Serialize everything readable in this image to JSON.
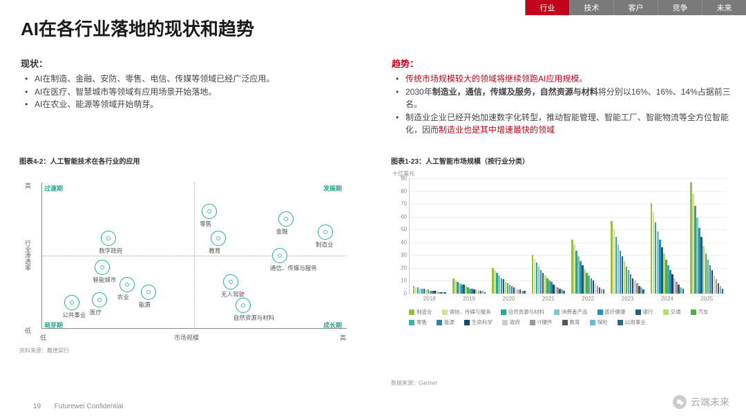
{
  "nav": {
    "tabs": [
      {
        "label": "行业",
        "active": true
      },
      {
        "label": "技术",
        "active": false
      },
      {
        "label": "客户",
        "active": false
      },
      {
        "label": "竞争",
        "active": false
      },
      {
        "label": "未来",
        "active": false
      }
    ]
  },
  "title": "AI在各行业落地的现状和趋势",
  "left": {
    "heading": "现状：",
    "bullets": [
      {
        "text": "AI在制造、金融、安防、零售、电信、传媒等领域已经广泛应用。"
      },
      {
        "text": "AI在医疗、智慧城市等领域有应用场景开始落地。"
      },
      {
        "text": "AI在农业、能源等领域开始萌芽。"
      }
    ]
  },
  "right": {
    "heading": "趋势",
    "bullets": [
      {
        "html": "<span class='hl'>传统市场规模较大的领域将继续领跑AI应用规模</span>。"
      },
      {
        "html": "2030年<span class='bold'>制造业，通信，传媒及服务，自然资源与材料</span>将分别以16%、16%、14%占据前三名。"
      },
      {
        "html": "制造业企业已经开始加速数字化转型，推动智能管理、智能工厂、智能物流等全方位智能化，因而<span class='hl'>制造业也是其中增速最快的领域</span>"
      }
    ]
  },
  "scatter": {
    "title": "图表4-2：人工智能技术在各行业的应用",
    "corner_labels": {
      "tl": "过渡期",
      "tr": "发展期",
      "bl": "萌芽期",
      "br": "成长期"
    },
    "y_axis": {
      "label": "行业渗透率",
      "low": "低",
      "high": "高"
    },
    "x_axis": {
      "label": "市场规模",
      "low": "低",
      "high": "高"
    },
    "accent": "#2aa890",
    "nodes": [
      {
        "label": "数字政府",
        "x": 0.22,
        "y": 0.62
      },
      {
        "label": "智能城市",
        "x": 0.2,
        "y": 0.42
      },
      {
        "label": "公共事业",
        "x": 0.1,
        "y": 0.18
      },
      {
        "label": "医疗",
        "x": 0.19,
        "y": 0.2
      },
      {
        "label": "农业",
        "x": 0.28,
        "y": 0.3
      },
      {
        "label": "能源",
        "x": 0.35,
        "y": 0.25
      },
      {
        "label": "零售",
        "x": 0.55,
        "y": 0.8
      },
      {
        "label": "教育",
        "x": 0.58,
        "y": 0.62
      },
      {
        "label": "无人驾驶",
        "x": 0.62,
        "y": 0.32
      },
      {
        "label": "自然资源与材料",
        "x": 0.66,
        "y": 0.16
      },
      {
        "label": "金融",
        "x": 0.8,
        "y": 0.75
      },
      {
        "label": "通信、传媒与服务",
        "x": 0.78,
        "y": 0.5
      },
      {
        "label": "制造业",
        "x": 0.93,
        "y": 0.66
      }
    ],
    "source": "资料来源：戴德梁行"
  },
  "barchart": {
    "title": "图表1-23：人工智能市场规模（按行业分类）",
    "y_unit": "十亿美元",
    "ylim": [
      0,
      90
    ],
    "ytick_step": 10,
    "years": [
      "2018",
      "2019",
      "2020",
      "2021",
      "2022",
      "2023",
      "2024",
      "2025"
    ],
    "series": [
      {
        "label": "制造业",
        "color": "#9bbf3b"
      },
      {
        "label": "通信、传媒与服务",
        "color": "#cfe39a"
      },
      {
        "label": "自然资源与材料",
        "color": "#2aa890"
      },
      {
        "label": "消费者产品",
        "color": "#7ecac0"
      },
      {
        "label": "医疗健康",
        "color": "#2a8ec4"
      },
      {
        "label": "银行",
        "color": "#1e5f7a"
      },
      {
        "label": "交通",
        "color": "#b7d97a"
      },
      {
        "label": "汽车",
        "color": "#5aa64a"
      },
      {
        "label": "零售",
        "color": "#44b2a0"
      },
      {
        "label": "能源",
        "color": "#3b7fa8"
      },
      {
        "label": "生命科学",
        "color": "#16486a"
      },
      {
        "label": "政府",
        "color": "#cccccc"
      },
      {
        "label": "IT硬件",
        "color": "#999999"
      },
      {
        "label": "教育",
        "color": "#555555"
      },
      {
        "label": "保险",
        "color": "#6fb6d6"
      },
      {
        "label": "公用事业",
        "color": "#2d6a88"
      }
    ],
    "data": [
      [
        6,
        5,
        5,
        4,
        4,
        4,
        3,
        3,
        2,
        2,
        2,
        2,
        1,
        1,
        1,
        1
      ],
      [
        12,
        10,
        9,
        8,
        7,
        7,
        6,
        5,
        4,
        4,
        3,
        3,
        2,
        2,
        2,
        1
      ],
      [
        20,
        18,
        16,
        14,
        12,
        11,
        9,
        8,
        7,
        6,
        5,
        4,
        3,
        3,
        2,
        2
      ],
      [
        30,
        27,
        24,
        21,
        18,
        16,
        14,
        12,
        10,
        9,
        7,
        6,
        5,
        4,
        3,
        2
      ],
      [
        42,
        38,
        33,
        29,
        25,
        22,
        19,
        16,
        14,
        12,
        10,
        8,
        6,
        5,
        4,
        3
      ],
      [
        56,
        50,
        44,
        38,
        33,
        29,
        25,
        21,
        18,
        15,
        12,
        10,
        8,
        6,
        5,
        3
      ],
      [
        70,
        63,
        55,
        48,
        42,
        36,
        31,
        26,
        22,
        18,
        15,
        12,
        9,
        7,
        5,
        4
      ],
      [
        86,
        77,
        68,
        59,
        51,
        44,
        37,
        31,
        26,
        22,
        18,
        14,
        11,
        8,
        6,
        4
      ]
    ],
    "source": "数据来源：Gartner"
  },
  "footer": {
    "page": "19",
    "conf": "Futurewei Confidential"
  },
  "watermark": "云端未来"
}
